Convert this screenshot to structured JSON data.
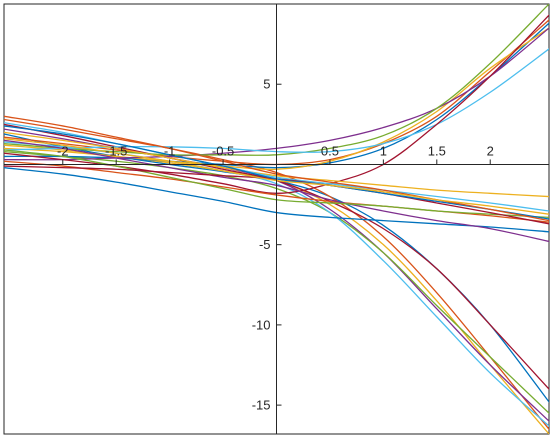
{
  "chart_data": {
    "type": "line",
    "title": "",
    "xlabel": "",
    "ylabel": "",
    "xlim": [
      -2.55,
      2.55
    ],
    "ylim": [
      -16.8,
      10.0
    ],
    "grid": false,
    "legend": "none",
    "x_ticks": [
      {
        "value": -2,
        "label": "-2"
      },
      {
        "value": -1.5,
        "label": "-1.5"
      },
      {
        "value": -1,
        "label": "-1"
      },
      {
        "value": -0.5,
        "label": "-0.5"
      },
      {
        "value": 0.5,
        "label": "0.5"
      },
      {
        "value": 1,
        "label": "1"
      },
      {
        "value": 1.5,
        "label": "1.5"
      },
      {
        "value": 2,
        "label": "2"
      }
    ],
    "y_ticks": [
      {
        "value": 5,
        "label": "5"
      },
      {
        "value": -5,
        "label": "-5"
      },
      {
        "value": -10,
        "label": "-10"
      },
      {
        "value": -15,
        "label": "-15"
      }
    ],
    "x_sample": [
      -2.55,
      -2.0,
      -1.5,
      -1.0,
      -0.5,
      0.0,
      0.5,
      1.0,
      1.5,
      2.0,
      2.55
    ],
    "series": [
      {
        "color": "#0072bd",
        "values": [
          1.9,
          1.1,
          0.5,
          0.0,
          -0.45,
          -1.0,
          -2.0,
          -3.8,
          -6.5,
          -10.0,
          -14.8
        ]
      },
      {
        "color": "#d95319",
        "values": [
          2.8,
          2.2,
          1.6,
          1.0,
          0.3,
          -0.5,
          -2.0,
          -4.5,
          -8.0,
          -12.0,
          -16.5
        ]
      },
      {
        "color": "#edb120",
        "values": [
          1.2,
          0.9,
          0.5,
          0.1,
          -0.4,
          -1.0,
          -2.5,
          -5.0,
          -8.5,
          -12.5,
          -16.8
        ]
      },
      {
        "color": "#7e2f8e",
        "values": [
          2.2,
          1.6,
          1.0,
          0.4,
          -0.2,
          -1.0,
          -2.8,
          -5.5,
          -9.0,
          -12.5,
          -16.0
        ]
      },
      {
        "color": "#77ac30",
        "values": [
          0.8,
          0.5,
          0.2,
          -0.2,
          -0.7,
          -1.5,
          -3.0,
          -5.5,
          -8.8,
          -12.0,
          -15.5
        ]
      },
      {
        "color": "#4dbeee",
        "values": [
          1.4,
          1.1,
          0.7,
          0.2,
          -0.4,
          -1.2,
          -3.0,
          -6.0,
          -9.5,
          -13.0,
          -16.3
        ]
      },
      {
        "color": "#a2142f",
        "values": [
          2.5,
          1.8,
          1.1,
          0.4,
          -0.3,
          -1.0,
          -2.3,
          -4.0,
          -6.5,
          -10.0,
          -14.0
        ]
      },
      {
        "color": "#0072bd",
        "values": [
          0.5,
          0.5,
          0.4,
          0.2,
          0.0,
          -0.2,
          0.1,
          1.0,
          2.8,
          5.5,
          8.8
        ]
      },
      {
        "color": "#d95319",
        "values": [
          1.7,
          1.3,
          0.9,
          0.5,
          0.2,
          0.0,
          0.3,
          1.3,
          3.0,
          5.8,
          9.0
        ]
      },
      {
        "color": "#edb120",
        "values": [
          1.0,
          0.8,
          0.5,
          0.2,
          -0.1,
          -0.3,
          0.2,
          1.4,
          3.3,
          6.0,
          8.5
        ]
      },
      {
        "color": "#7e2f8e",
        "values": [
          0.3,
          0.3,
          0.4,
          0.5,
          0.7,
          1.0,
          1.5,
          2.3,
          3.5,
          5.5,
          8.5
        ]
      },
      {
        "color": "#77ac30",
        "values": [
          1.3,
          1.0,
          0.8,
          0.6,
          0.6,
          0.6,
          1.0,
          1.8,
          3.5,
          6.3,
          10.0
        ]
      },
      {
        "color": "#4dbeee",
        "values": [
          0.9,
          1.0,
          1.1,
          1.1,
          1.0,
          0.8,
          0.8,
          1.3,
          2.5,
          4.5,
          7.2
        ]
      },
      {
        "color": "#a2142f",
        "values": [
          0.7,
          0.3,
          -0.1,
          -0.6,
          -1.2,
          -1.8,
          -1.2,
          0.0,
          2.5,
          5.5,
          9.3
        ]
      },
      {
        "color": "#0072bd",
        "values": [
          -0.2,
          -0.6,
          -1.1,
          -1.7,
          -2.3,
          -3.0,
          -3.3,
          -3.5,
          -3.7,
          -3.9,
          -4.2
        ]
      },
      {
        "color": "#d95319",
        "values": [
          0.2,
          -0.1,
          -0.5,
          -0.9,
          -1.4,
          -1.9,
          -2.3,
          -2.6,
          -2.9,
          -3.2,
          -3.6
        ]
      },
      {
        "color": "#edb120",
        "values": [
          2.0,
          1.5,
          1.0,
          0.4,
          -0.2,
          -0.7,
          -1.0,
          -1.3,
          -1.6,
          -1.8,
          -2.0
        ]
      },
      {
        "color": "#7e2f8e",
        "values": [
          1.5,
          1.0,
          0.4,
          -0.2,
          -0.8,
          -1.3,
          -2.2,
          -2.9,
          -3.5,
          -4.0,
          -4.8
        ]
      },
      {
        "color": "#77ac30",
        "values": [
          0.9,
          0.5,
          -0.1,
          -0.8,
          -1.5,
          -2.2,
          -2.4,
          -2.6,
          -2.9,
          -3.1,
          -3.3
        ]
      },
      {
        "color": "#4dbeee",
        "values": [
          2.6,
          2.0,
          1.3,
          0.6,
          -0.1,
          -0.8,
          -1.2,
          -1.6,
          -2.0,
          -2.4,
          -2.9
        ]
      },
      {
        "color": "#a2142f",
        "values": [
          -0.1,
          -0.2,
          -0.3,
          -0.5,
          -0.7,
          -0.9,
          -1.3,
          -1.8,
          -2.4,
          -3.0,
          -3.7
        ]
      },
      {
        "color": "#0072bd",
        "values": [
          2.4,
          1.9,
          1.3,
          0.6,
          -0.1,
          -0.9,
          -1.3,
          -1.8,
          -2.3,
          -2.8,
          -3.4
        ]
      },
      {
        "color": "#d95319",
        "values": [
          3.0,
          2.4,
          1.7,
          1.0,
          0.2,
          -0.6,
          -1.1,
          -1.6,
          -2.2,
          -2.8,
          -3.5
        ]
      },
      {
        "color": "#edb120",
        "values": [
          1.6,
          1.2,
          0.7,
          0.2,
          -0.4,
          -1.0,
          -1.3,
          -1.7,
          -2.2,
          -2.6,
          -3.1
        ]
      }
    ]
  }
}
